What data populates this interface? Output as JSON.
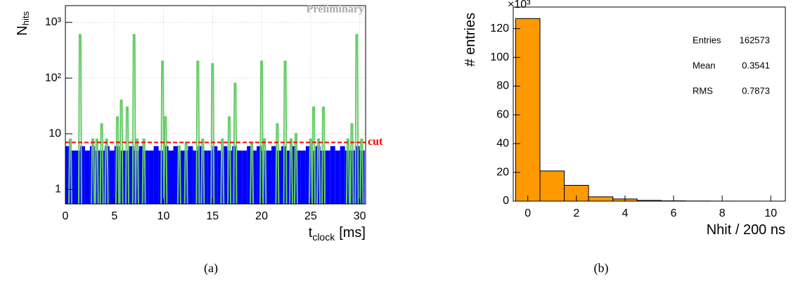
{
  "chart_data": [
    {
      "type": "histogram",
      "log_y": true,
      "grid": true,
      "annotation": "Preliminary",
      "ylabel": "N",
      "ylabel_sub": "hits",
      "xlabel": "t",
      "xlabel_sub": "clock",
      "xlabel_unit": "[ms]",
      "caption": "(a)",
      "xlim": [
        0,
        30.6
      ],
      "xticks": [
        0,
        5,
        10,
        15,
        20,
        25,
        30
      ],
      "ylim": [
        0.55,
        2000
      ],
      "yticks": [
        1,
        10,
        {
          "value": 100,
          "label": "10²"
        },
        {
          "value": 1000,
          "label": "10³"
        }
      ],
      "cut": {
        "label": "cut",
        "value": 7,
        "color": "#ff0000"
      },
      "series": [
        {
          "color": "#0000ff",
          "bins": [
            0,
            0.5,
            1,
            1.5,
            2,
            2.5,
            3,
            3.5,
            4,
            4.5,
            5,
            5.5,
            6,
            6.5,
            7,
            7.5,
            8,
            8.5,
            9,
            9.5,
            10,
            10.5,
            11,
            11.5,
            12,
            12.5,
            13,
            13.5,
            14,
            14.5,
            15,
            15.5,
            16,
            16.5,
            17,
            17.5,
            18,
            18.5,
            19,
            19.5,
            20,
            20.5,
            21,
            21.5,
            22,
            22.5,
            23,
            23.5,
            24,
            24.5,
            25,
            25.5,
            26,
            26.5,
            27,
            27.5,
            28,
            28.5,
            29,
            29.5,
            30,
            30.5
          ],
          "values": [
            6,
            5,
            5,
            6,
            5,
            6,
            5,
            5,
            6,
            5,
            6,
            5,
            5,
            6,
            5,
            6,
            5,
            5,
            6,
            5,
            6,
            5,
            6,
            5,
            5,
            6,
            5,
            6,
            5,
            5,
            6,
            5,
            6,
            5,
            6,
            5,
            5,
            6,
            5,
            6,
            5,
            5,
            6,
            5,
            6,
            5,
            6,
            5,
            5,
            6,
            5,
            6,
            5,
            5,
            6,
            5,
            6,
            5,
            5,
            6,
            5
          ]
        },
        {
          "color": "#66cc66",
          "x": [
            0.5,
            1.5,
            2.8,
            3.2,
            3.7,
            4.2,
            5.3,
            5.7,
            6.3,
            7.0,
            7.3,
            8.0,
            9.9,
            10.2,
            11.6,
            12.3,
            13.5,
            14.0,
            15.0,
            16.0,
            16.7,
            17.3,
            19.0,
            20.0,
            20.3,
            21.6,
            22.4,
            23.0,
            23.5,
            25.0,
            25.3,
            25.8,
            26.3,
            28.8,
            29.2,
            29.7,
            30.2
          ],
          "values": [
            8,
            600,
            8,
            8,
            15,
            8,
            20,
            40,
            30,
            600,
            8,
            8,
            200,
            20,
            6,
            7,
            200,
            8,
            180,
            8,
            20,
            80,
            7,
            200,
            8,
            15,
            200,
            8,
            10,
            8,
            30,
            8,
            30,
            8,
            15,
            600,
            8
          ]
        }
      ]
    },
    {
      "type": "histogram",
      "log_y": false,
      "grid": false,
      "ylabel": "# entries",
      "xlabel": "Nhit / 200 ns",
      "multiplier": "×10³",
      "caption": "(b)",
      "xlim": [
        -0.6,
        10.6
      ],
      "xticks": [
        0,
        2,
        4,
        6,
        8,
        10
      ],
      "ylim": [
        0,
        135
      ],
      "yticks": [
        0,
        20,
        40,
        60,
        80,
        100,
        120
      ],
      "stats": [
        {
          "name": "Entries",
          "value": 162573
        },
        {
          "name": "Mean",
          "value": 0.3541
        },
        {
          "name": "RMS",
          "value": 0.7873
        }
      ],
      "series": [
        {
          "color": "#ff9900",
          "bins": [
            -0.5,
            0.5,
            1.5,
            2.5,
            3.5,
            4.5,
            5.5,
            6.5,
            7.5,
            8.5,
            9.5,
            10.5
          ],
          "values": [
            127,
            21,
            11,
            3,
            1.5,
            0.5,
            0.2,
            0.1,
            0.05,
            0.02,
            0.01
          ]
        }
      ]
    }
  ]
}
